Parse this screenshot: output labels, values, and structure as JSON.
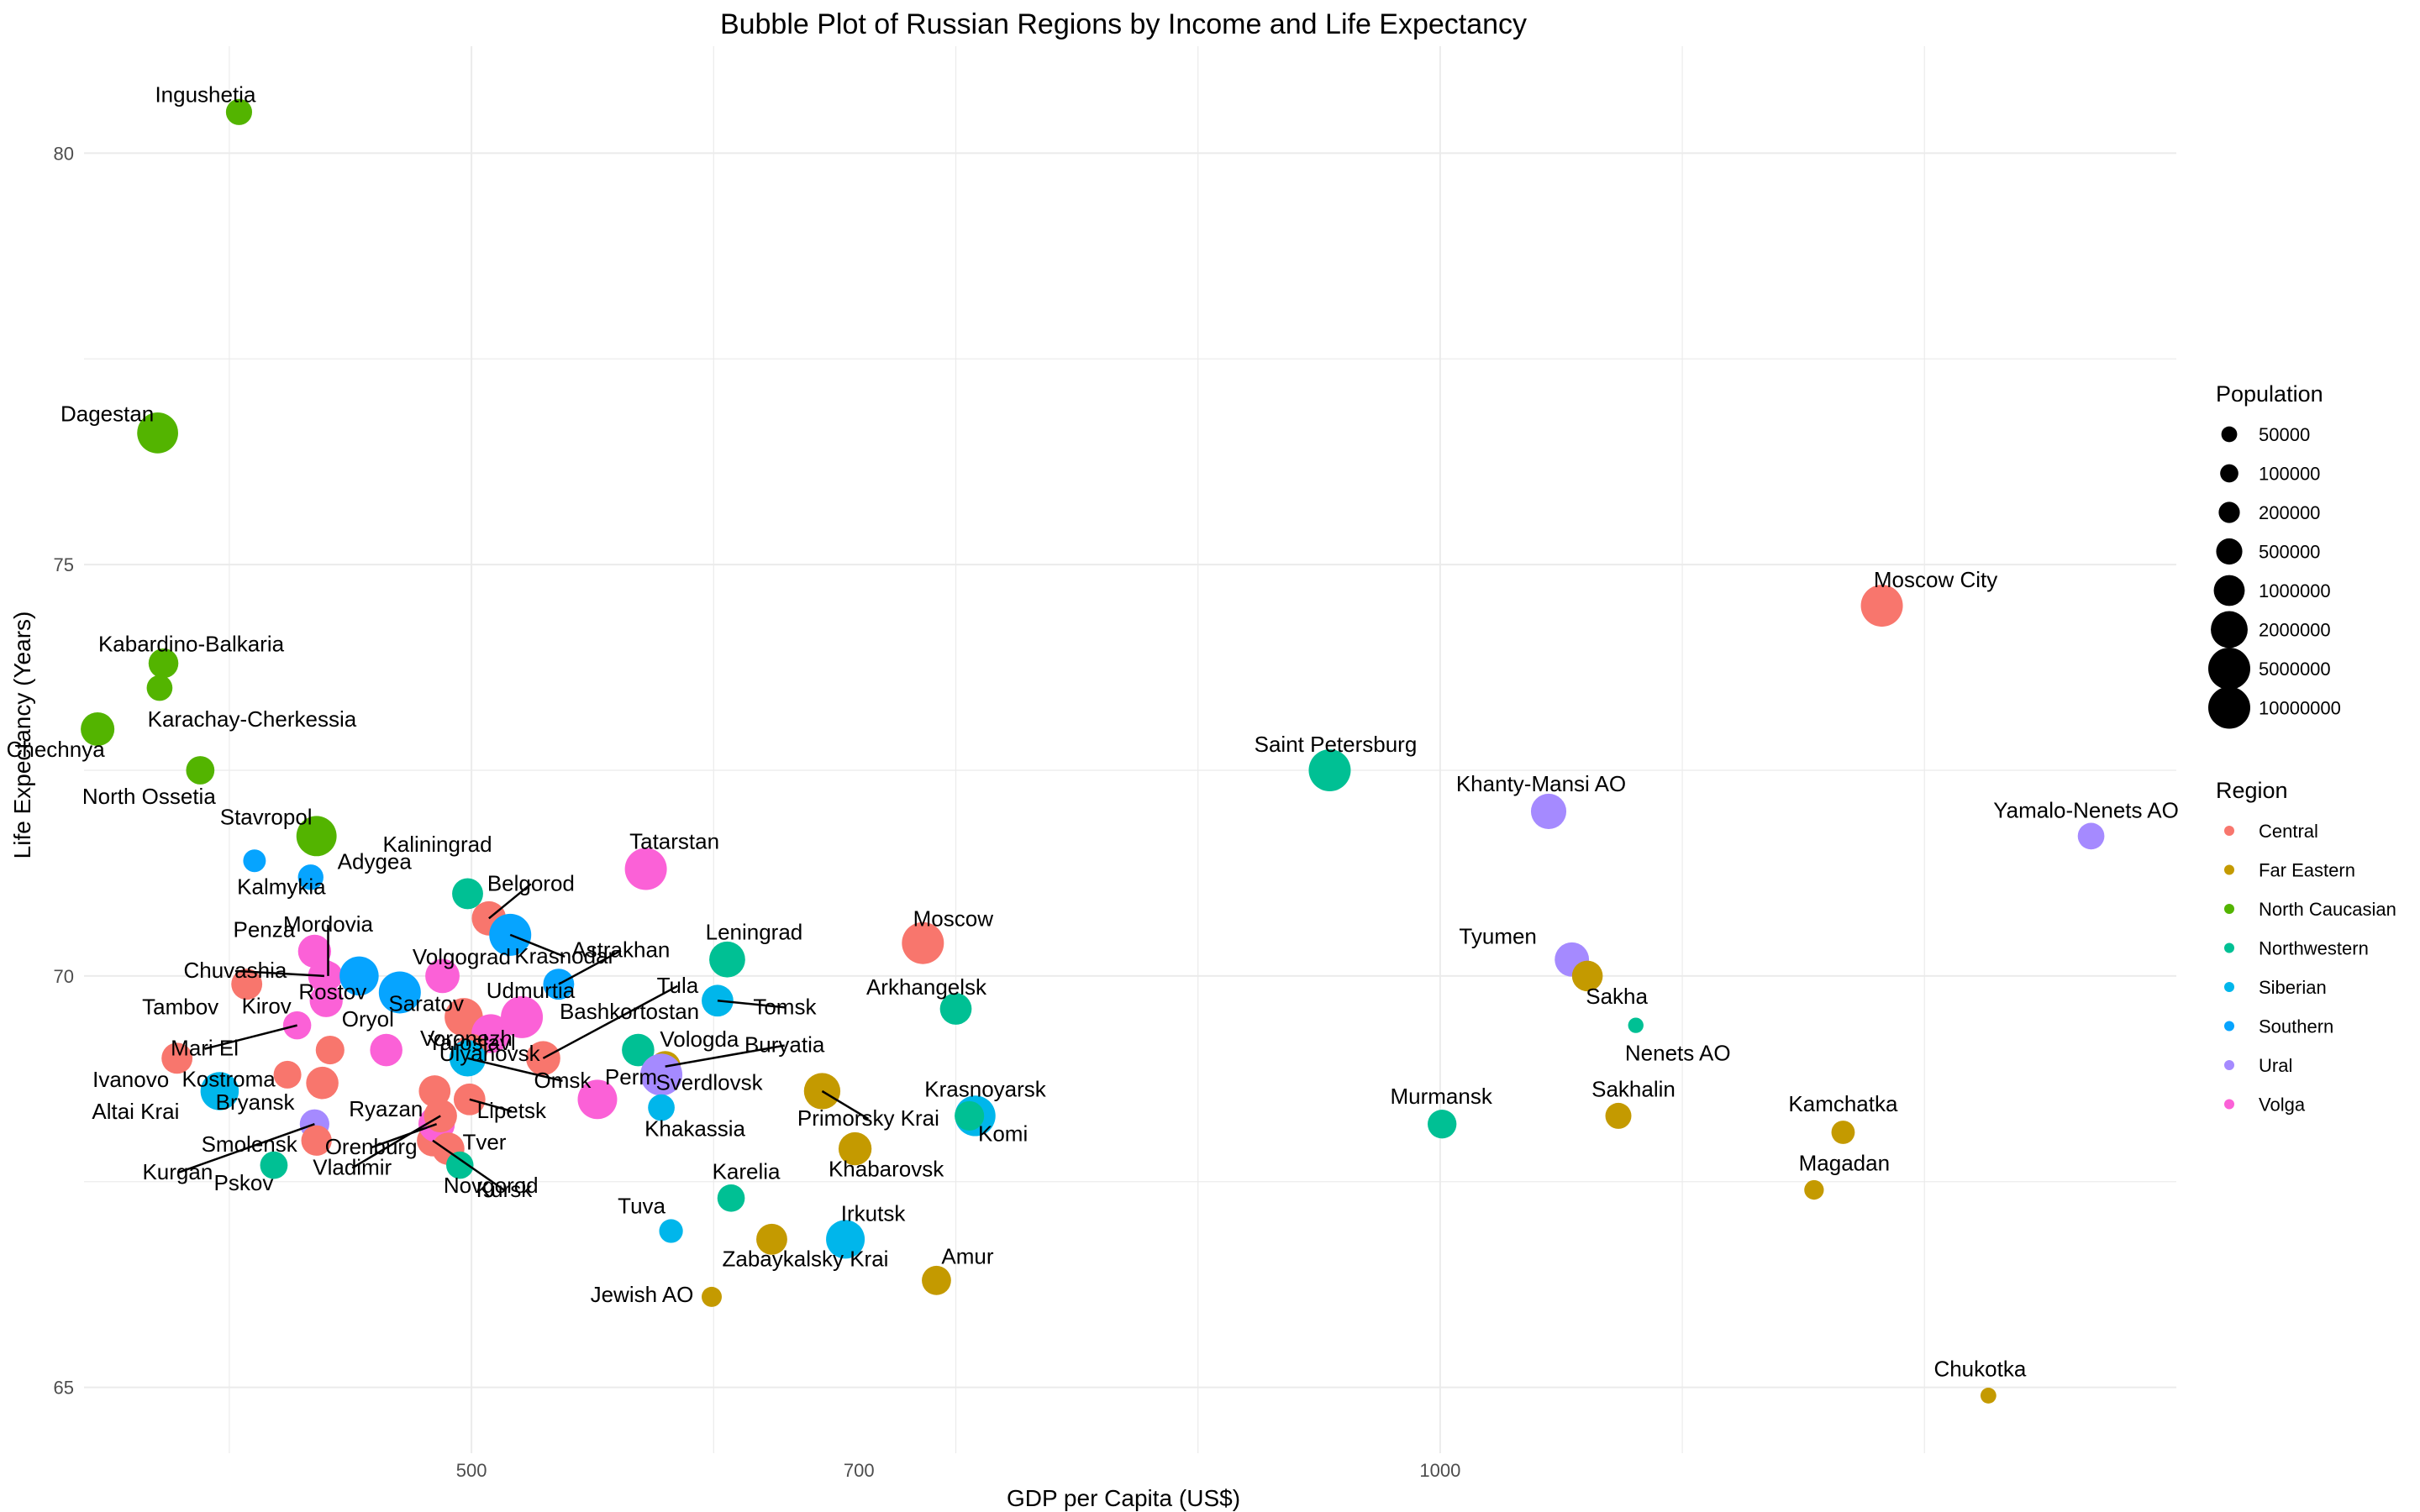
{
  "chart_data": {
    "type": "scatter",
    "title": "Bubble Plot of Russian Regions by Income and Life Expectancy",
    "xlabel": "GDP per Capita (US$)",
    "ylabel": "Life Expectancy (Years)",
    "xlim": [
      300,
      1380
    ],
    "ylim": [
      64.2,
      81.3
    ],
    "x_ticks": [
      500,
      700,
      1000
    ],
    "y_ticks": [
      65,
      70,
      75,
      80
    ],
    "grid": true,
    "legend_position": "right",
    "size_legend": {
      "title": "Population",
      "entries": [
        {
          "label": "50000",
          "value": 50000
        },
        {
          "label": "100000",
          "value": 100000
        },
        {
          "label": "200000",
          "value": 200000
        },
        {
          "label": "500000",
          "value": 500000
        },
        {
          "label": "1000000",
          "value": 1000000
        },
        {
          "label": "2000000",
          "value": 2000000
        },
        {
          "label": "5000000",
          "value": 5000000
        },
        {
          "label": "10000000",
          "value": 10000000
        }
      ]
    },
    "color_legend": {
      "title": "Region",
      "entries": [
        {
          "name": "Central",
          "color": "#F8766D"
        },
        {
          "name": "Far Eastern",
          "color": "#C49A00"
        },
        {
          "name": "North Caucasian",
          "color": "#53B400"
        },
        {
          "name": "Northwestern",
          "color": "#00C094"
        },
        {
          "name": "Siberian",
          "color": "#00B6EB"
        },
        {
          "name": "Southern",
          "color": "#06A4FF"
        },
        {
          "name": "Ural",
          "color": "#A58AFF"
        },
        {
          "name": "Volga",
          "color": "#FB61D7"
        }
      ]
    },
    "points": [
      {
        "name": "Ingushetia",
        "x": 380,
        "y": 80.5,
        "pop": 500000,
        "region": "North Caucasian"
      },
      {
        "name": "Dagestan",
        "x": 338,
        "y": 76.6,
        "pop": 3000000,
        "region": "North Caucasian"
      },
      {
        "name": "Kabardino-Balkaria",
        "x": 341,
        "y": 73.8,
        "pop": 860000,
        "region": "North Caucasian"
      },
      {
        "name": "Karachay-Cherkessia",
        "x": 339,
        "y": 73.5,
        "pop": 470000,
        "region": "North Caucasian"
      },
      {
        "name": "Chechnya",
        "x": 307,
        "y": 73.0,
        "pop": 1400000,
        "region": "North Caucasian"
      },
      {
        "name": "North Ossetia",
        "x": 360,
        "y": 72.5,
        "pop": 700000,
        "region": "North Caucasian"
      },
      {
        "name": "Stavropol",
        "x": 420,
        "y": 71.7,
        "pop": 2800000,
        "region": "North Caucasian"
      },
      {
        "name": "Kalmykia",
        "x": 388,
        "y": 71.4,
        "pop": 270000,
        "region": "Southern"
      },
      {
        "name": "Adygea",
        "x": 417,
        "y": 71.2,
        "pop": 450000,
        "region": "Southern"
      },
      {
        "name": "Kaliningrad",
        "x": 498,
        "y": 71.0,
        "pop": 1000000,
        "region": "Northwestern"
      },
      {
        "name": "Belgorod",
        "x": 509,
        "y": 70.7,
        "pop": 1500000,
        "region": "Central"
      },
      {
        "name": "Krasnodar",
        "x": 520,
        "y": 70.5,
        "pop": 5600000,
        "region": "Southern"
      },
      {
        "name": "Tatarstan",
        "x": 590,
        "y": 71.3,
        "pop": 3900000,
        "region": "Volga"
      },
      {
        "name": "Mordovia",
        "x": 426,
        "y": 70.0,
        "pop": 780000,
        "region": "Volga"
      },
      {
        "name": "Penza",
        "x": 419,
        "y": 70.3,
        "pop": 1300000,
        "region": "Volga"
      },
      {
        "name": "Chuvashia",
        "x": 424,
        "y": 70.0,
        "pop": 1200000,
        "region": "Volga"
      },
      {
        "name": "Volgograd",
        "x": 442,
        "y": 70.0,
        "pop": 2500000,
        "region": "Southern"
      },
      {
        "name": "Rostov",
        "x": 463,
        "y": 69.8,
        "pop": 4200000,
        "region": "Southern"
      },
      {
        "name": "Udmurtia",
        "x": 485,
        "y": 70.0,
        "pop": 1500000,
        "region": "Volga"
      },
      {
        "name": "Astrakhan",
        "x": 545,
        "y": 69.9,
        "pop": 1000000,
        "region": "Southern"
      },
      {
        "name": "Leningrad",
        "x": 632,
        "y": 70.2,
        "pop": 1800000,
        "region": "Northwestern"
      },
      {
        "name": "Moscow",
        "x": 733,
        "y": 70.4,
        "pop": 7500000,
        "region": "Central"
      },
      {
        "name": "Tambov",
        "x": 384,
        "y": 69.9,
        "pop": 1000000,
        "region": "Central"
      },
      {
        "name": "Kirov",
        "x": 425,
        "y": 69.7,
        "pop": 1300000,
        "region": "Volga"
      },
      {
        "name": "Voronezh",
        "x": 496,
        "y": 69.5,
        "pop": 2300000,
        "region": "Central"
      },
      {
        "name": "Tula",
        "x": 537,
        "y": 69.0,
        "pop": 1500000,
        "region": "Central"
      },
      {
        "name": "Bashkortostan",
        "x": 526,
        "y": 69.5,
        "pop": 4000000,
        "region": "Volga"
      },
      {
        "name": "Tomsk",
        "x": 627,
        "y": 69.7,
        "pop": 1100000,
        "region": "Siberian"
      },
      {
        "name": "Arkhangelsk",
        "x": 750,
        "y": 69.6,
        "pop": 1100000,
        "region": "Northwestern"
      },
      {
        "name": "Mari El",
        "x": 410,
        "y": 69.4,
        "pop": 680000,
        "region": "Volga"
      },
      {
        "name": "Saratov",
        "x": 510,
        "y": 69.3,
        "pop": 2400000,
        "region": "Volga"
      },
      {
        "name": "Yaroslavl",
        "x": 500,
        "y": 69.1,
        "pop": 1200000,
        "region": "Central"
      },
      {
        "name": "Vologda",
        "x": 586,
        "y": 69.1,
        "pop": 1200000,
        "region": "Northwestern"
      },
      {
        "name": "Buryatia",
        "x": 600,
        "y": 68.9,
        "pop": 980000,
        "region": "Far Eastern"
      },
      {
        "name": "Oryol",
        "x": 427,
        "y": 69.1,
        "pop": 730000,
        "region": "Central"
      },
      {
        "name": "Ivanovo",
        "x": 348,
        "y": 69.0,
        "pop": 1000000,
        "region": "Central"
      },
      {
        "name": "Kostroma",
        "x": 405,
        "y": 68.8,
        "pop": 640000,
        "region": "Central"
      },
      {
        "name": "Ulyanovsk",
        "x": 456,
        "y": 69.1,
        "pop": 1200000,
        "region": "Volga"
      },
      {
        "name": "Omsk",
        "x": 498,
        "y": 69.0,
        "pop": 1900000,
        "region": "Siberian"
      },
      {
        "name": "Perm",
        "x": 565,
        "y": 68.5,
        "pop": 2600000,
        "region": "Volga"
      },
      {
        "name": "Sverdlovsk",
        "x": 598,
        "y": 68.8,
        "pop": 4300000,
        "region": "Ural"
      },
      {
        "name": "Altai Krai",
        "x": 370,
        "y": 68.6,
        "pop": 2300000,
        "region": "Siberian"
      },
      {
        "name": "Bryansk",
        "x": 423,
        "y": 68.7,
        "pop": 1200000,
        "region": "Central"
      },
      {
        "name": "Kurgan",
        "x": 419,
        "y": 68.2,
        "pop": 830000,
        "region": "Ural"
      },
      {
        "name": "Ryazan",
        "x": 481,
        "y": 68.6,
        "pop": 1100000,
        "region": "Central"
      },
      {
        "name": "Lipetsk",
        "x": 499,
        "y": 68.5,
        "pop": 1100000,
        "region": "Central"
      },
      {
        "name": "Kursk",
        "x": 480,
        "y": 68.0,
        "pop": 1100000,
        "region": "Central"
      },
      {
        "name": "Khakassia",
        "x": 598,
        "y": 68.4,
        "pop": 540000,
        "region": "Siberian"
      },
      {
        "name": "Primorsky Krai",
        "x": 681,
        "y": 68.6,
        "pop": 1900000,
        "region": "Far Eastern"
      },
      {
        "name": "Krasnoyarsk",
        "x": 760,
        "y": 68.3,
        "pop": 2900000,
        "region": "Siberian"
      },
      {
        "name": "Smolensk",
        "x": 420,
        "y": 68.0,
        "pop": 940000,
        "region": "Central"
      },
      {
        "name": "Orenburg",
        "x": 482,
        "y": 68.2,
        "pop": 1900000,
        "region": "Volga"
      },
      {
        "name": "Tver",
        "x": 488,
        "y": 67.9,
        "pop": 1200000,
        "region": "Central"
      },
      {
        "name": "Pskov",
        "x": 398,
        "y": 67.7,
        "pop": 620000,
        "region": "Northwestern"
      },
      {
        "name": "Vladimir",
        "x": 484,
        "y": 68.3,
        "pop": 1300000,
        "region": "Central"
      },
      {
        "name": "Novgorod",
        "x": 494,
        "y": 67.7,
        "pop": 600000,
        "region": "Northwestern"
      },
      {
        "name": "Karelia",
        "x": 634,
        "y": 67.3,
        "pop": 610000,
        "region": "Northwestern"
      },
      {
        "name": "Khabarovsk",
        "x": 698,
        "y": 67.9,
        "pop": 1300000,
        "region": "Far Eastern"
      },
      {
        "name": "Komi",
        "x": 757,
        "y": 68.3,
        "pop": 820000,
        "region": "Northwestern"
      },
      {
        "name": "Tuva",
        "x": 603,
        "y": 66.9,
        "pop": 330000,
        "region": "Siberian"
      },
      {
        "name": "Zabaykalsky Krai",
        "x": 655,
        "y": 66.8,
        "pop": 1000000,
        "region": "Far Eastern"
      },
      {
        "name": "Irkutsk",
        "x": 693,
        "y": 66.8,
        "pop": 2400000,
        "region": "Siberian"
      },
      {
        "name": "Jewish AO",
        "x": 624,
        "y": 66.1,
        "pop": 160000,
        "region": "Far Eastern"
      },
      {
        "name": "Amur",
        "x": 740,
        "y": 66.3,
        "pop": 790000,
        "region": "Far Eastern"
      },
      {
        "name": "Moscow City",
        "x": 1228,
        "y": 74.5,
        "pop": 12600000,
        "region": "Central"
      },
      {
        "name": "Saint Petersburg",
        "x": 943,
        "y": 72.5,
        "pop": 5400000,
        "region": "Northwestern"
      },
      {
        "name": "Khanty-Mansi AO",
        "x": 1056,
        "y": 72.0,
        "pop": 1700000,
        "region": "Ural"
      },
      {
        "name": "Yamalo-Nenets AO",
        "x": 1336,
        "y": 71.7,
        "pop": 540000,
        "region": "Ural"
      },
      {
        "name": "Tyumen",
        "x": 1068,
        "y": 70.2,
        "pop": 1500000,
        "region": "Ural"
      },
      {
        "name": "Sakha",
        "x": 1076,
        "y": 70.0,
        "pop": 970000,
        "region": "Far Eastern"
      },
      {
        "name": "Nenets AO",
        "x": 1101,
        "y": 69.4,
        "pop": 44000,
        "region": "Northwestern"
      },
      {
        "name": "Murmansk",
        "x": 1001,
        "y": 68.2,
        "pop": 750000,
        "region": "Northwestern"
      },
      {
        "name": "Sakhalin",
        "x": 1092,
        "y": 68.3,
        "pop": 490000,
        "region": "Far Eastern"
      },
      {
        "name": "Kamchatka",
        "x": 1208,
        "y": 68.1,
        "pop": 310000,
        "region": "Far Eastern"
      },
      {
        "name": "Magadan",
        "x": 1193,
        "y": 67.4,
        "pop": 140000,
        "region": "Far Eastern"
      },
      {
        "name": "Chukotka",
        "x": 1283,
        "y": 64.9,
        "pop": 50000,
        "region": "Far Eastern"
      }
    ]
  }
}
